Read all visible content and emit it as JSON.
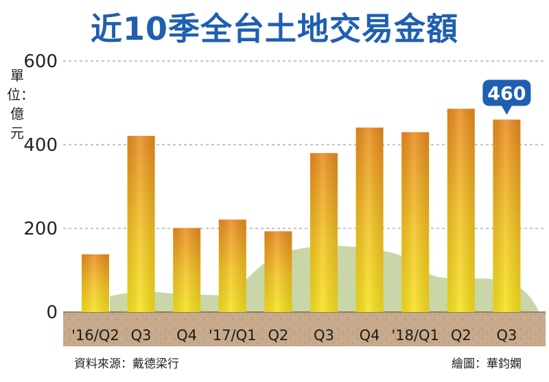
{
  "chart_data": {
    "type": "bar",
    "title": "近10季全台土地交易金額",
    "unit_label": "單位：億元",
    "categories": [
      "'16/Q2",
      "Q3",
      "Q4",
      "'17/Q1",
      "Q2",
      "Q3",
      "Q4",
      "'18/Q1",
      "Q2",
      "Q3"
    ],
    "values": [
      138,
      421,
      201,
      221,
      193,
      380,
      441,
      430,
      486,
      460
    ],
    "ylim": [
      0,
      600
    ],
    "yticks": [
      0,
      200,
      400,
      600
    ],
    "grid": true,
    "highlight": {
      "index": 9,
      "label": "460"
    },
    "colors": {
      "title": "#1f5fb0",
      "bar_top": "#e98a1e",
      "bar_bottom": "#f7e21d",
      "ground": "#c4a889",
      "hill": "#c9d6a8",
      "callout": "#1f5fb0"
    }
  },
  "source": "資料來源：戴德梁行",
  "credit": "繪圖：華鈞嫻"
}
